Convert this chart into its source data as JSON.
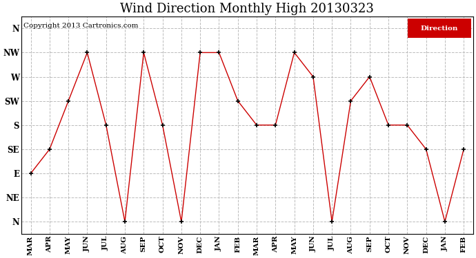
{
  "title": "Wind Direction Monthly High 20130323",
  "copyright": "Copyright 2013 Cartronics.com",
  "legend_label": "Direction",
  "legend_bg": "#cc0000",
  "legend_text_color": "#ffffff",
  "x_labels": [
    "MAR",
    "APR",
    "MAY",
    "JUN",
    "JUL",
    "AUG",
    "SEP",
    "OCT",
    "NOV",
    "DEC",
    "JAN",
    "FEB",
    "MAR",
    "APR",
    "MAY",
    "JUN",
    "JUL",
    "AUG",
    "SEP",
    "OCT",
    "NOV",
    "DEC",
    "JAN",
    "FEB"
  ],
  "y_labels": [
    "N",
    "NW",
    "W",
    "SW",
    "S",
    "SE",
    "E",
    "NE",
    "N"
  ],
  "y_ticks": [
    8,
    7,
    6,
    5,
    4,
    3,
    2,
    1,
    0
  ],
  "direction_values": [
    2,
    3,
    5,
    7,
    4,
    0,
    7,
    4,
    0,
    7,
    7,
    5,
    4,
    4,
    7,
    6,
    0,
    5,
    6,
    4,
    4,
    3,
    0,
    3
  ],
  "line_color": "#cc0000",
  "marker_color": "#000000",
  "bg_color": "#ffffff",
  "grid_color": "#bbbbbb",
  "title_fontsize": 13,
  "axis_fontsize": 7.5,
  "copyright_fontsize": 7.5
}
